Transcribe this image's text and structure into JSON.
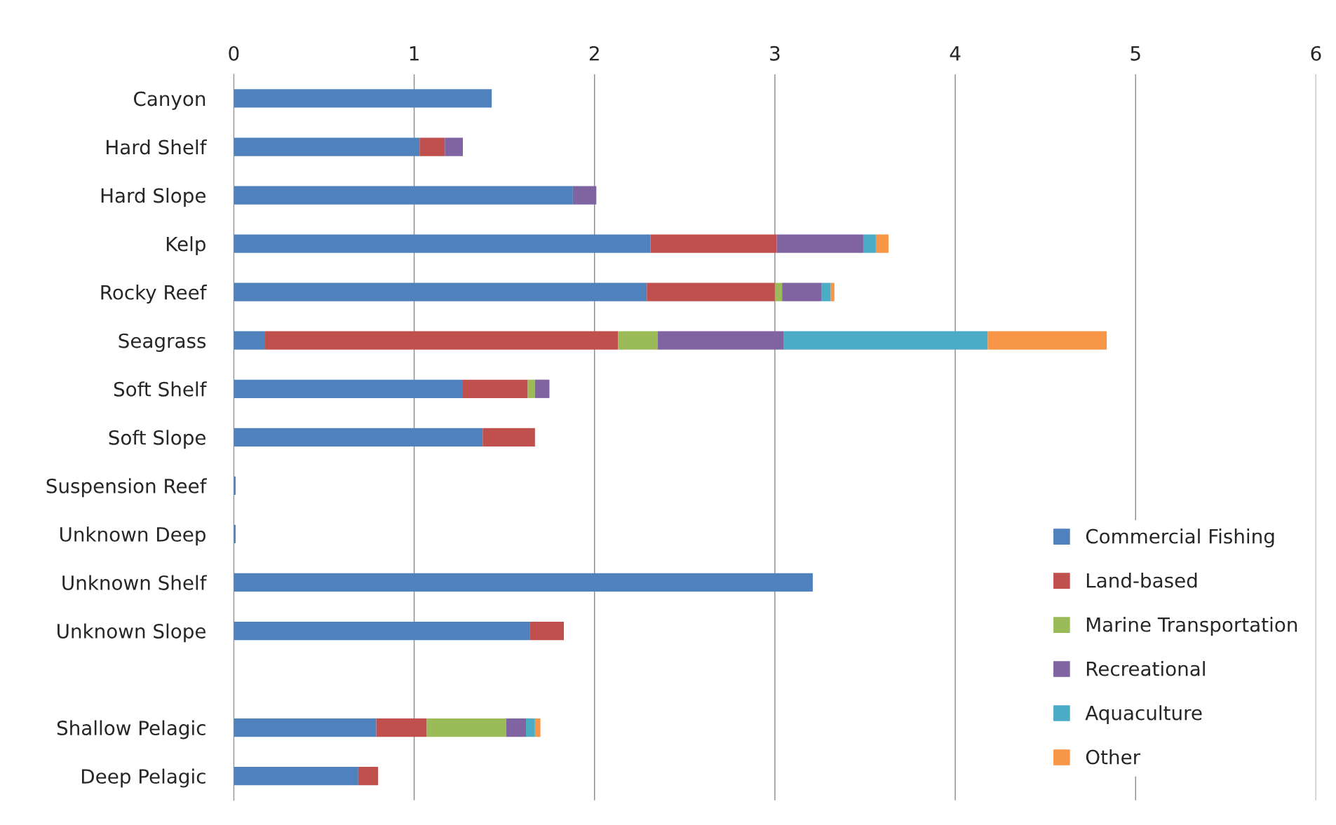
{
  "chart_data": {
    "type": "bar",
    "orientation": "horizontal",
    "stacked": true,
    "categories": [
      "Canyon",
      "Hard Shelf",
      "Hard Slope",
      "Kelp",
      "Rocky Reef",
      "Seagrass",
      "Soft Shelf",
      "Soft Slope",
      "Suspension Reef",
      "Unknown Deep",
      "Unknown Shelf",
      "Unknown Slope",
      null,
      "Shallow Pelagic",
      "Deep Pelagic"
    ],
    "series": [
      {
        "name": "Commercial Fishing",
        "color": "#4f81bd",
        "values": [
          1.43,
          1.03,
          1.88,
          2.31,
          2.29,
          0.17,
          1.27,
          1.38,
          0.01,
          0.01,
          3.21,
          1.64,
          null,
          0.79,
          0.69
        ]
      },
      {
        "name": "Land-based",
        "color": "#c0504d",
        "values": [
          null,
          0.14,
          null,
          0.7,
          0.71,
          1.96,
          0.36,
          0.29,
          null,
          null,
          null,
          0.19,
          null,
          0.28,
          0.11
        ]
      },
      {
        "name": "Marine Transportation",
        "color": "#9bbb59",
        "values": [
          null,
          null,
          null,
          null,
          0.04,
          0.22,
          0.04,
          null,
          null,
          null,
          null,
          null,
          null,
          0.44,
          null
        ]
      },
      {
        "name": "Recreational",
        "color": "#8064a2",
        "values": [
          null,
          0.1,
          0.13,
          0.48,
          0.22,
          0.7,
          0.08,
          null,
          null,
          null,
          null,
          null,
          null,
          0.11,
          null
        ]
      },
      {
        "name": "Aquaculture",
        "color": "#4bacc6",
        "values": [
          null,
          null,
          null,
          0.07,
          0.05,
          1.13,
          null,
          null,
          null,
          null,
          null,
          null,
          null,
          0.05,
          null
        ]
      },
      {
        "name": "Other",
        "color": "#f79646",
        "values": [
          null,
          null,
          null,
          0.07,
          0.02,
          0.66,
          null,
          null,
          null,
          null,
          null,
          null,
          null,
          0.03,
          null
        ]
      }
    ],
    "xlim": [
      0,
      6
    ],
    "xticks": [
      0,
      1,
      2,
      3,
      4,
      5,
      6
    ],
    "grid": "x",
    "legend": "bottom right"
  }
}
